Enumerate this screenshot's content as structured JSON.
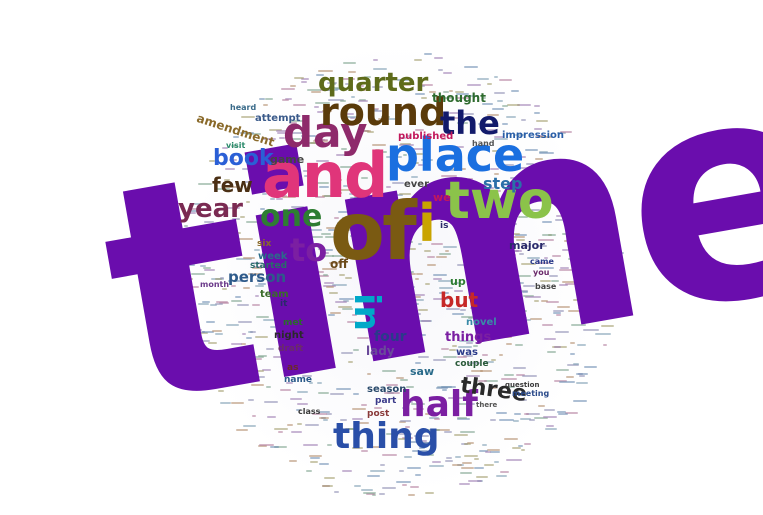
{
  "words": [
    {
      "text": "time",
      "color": "#6a0dad"
    },
    {
      "text": "and",
      "color": "#e0357a"
    },
    {
      "text": "of",
      "color": "#7a5a12"
    },
    {
      "text": "place",
      "color": "#1a6fe0"
    },
    {
      "text": "two",
      "color": "#8bc34a"
    },
    {
      "text": "day",
      "color": "#8e2a6b"
    },
    {
      "text": "round",
      "color": "#5a3a0a"
    },
    {
      "text": "quarter",
      "color": "#5e6b1a"
    },
    {
      "text": "the",
      "color": "#121a6b"
    },
    {
      "text": "i",
      "color": "#c9a400"
    },
    {
      "text": "one",
      "color": "#2e7d32"
    },
    {
      "text": "to",
      "color": "#7b1fa2"
    },
    {
      "text": "book",
      "color": "#2a5fd6"
    },
    {
      "text": "few",
      "color": "#4a2f14"
    },
    {
      "text": "year",
      "color": "#7a2a52"
    },
    {
      "text": "half",
      "color": "#7b1fa2"
    },
    {
      "text": "thing",
      "color": "#2a4fa8"
    },
    {
      "text": "in",
      "color": "#00a8c8"
    },
    {
      "text": "three",
      "color": "#2a2a2a"
    },
    {
      "text": "but",
      "color": "#c62828"
    },
    {
      "text": "step",
      "color": "#2a6fa8"
    },
    {
      "text": "person",
      "color": "#2e5a8a"
    },
    {
      "text": "amendment",
      "color": "#8a6a2a"
    },
    {
      "text": "game",
      "color": "#444444"
    },
    {
      "text": "thought",
      "color": "#2e6b2e"
    },
    {
      "text": "impression",
      "color": "#2a5fa8"
    },
    {
      "text": "published",
      "color": "#c2185b"
    },
    {
      "text": "attempt",
      "color": "#3a5a8a"
    },
    {
      "text": "four",
      "color": "#2a3a8a"
    },
    {
      "text": "things",
      "color": "#7b1fa2"
    },
    {
      "text": "lady",
      "color": "#6a4a9a"
    },
    {
      "text": "saw",
      "color": "#2a6b8a"
    },
    {
      "text": "up",
      "color": "#2e7d32"
    },
    {
      "text": "we",
      "color": "#c2185b"
    },
    {
      "text": "novel",
      "color": "#3a8aa8"
    },
    {
      "text": "was",
      "color": "#2a3a8a"
    },
    {
      "text": "couple",
      "color": "#2a5a3a"
    },
    {
      "text": "major",
      "color": "#2a2a6b"
    },
    {
      "text": "team",
      "color": "#3a6b2a"
    },
    {
      "text": "night",
      "color": "#2a2a2a"
    },
    {
      "text": "week",
      "color": "#2a6b8a"
    },
    {
      "text": "off",
      "color": "#6b4a1a"
    },
    {
      "text": "six",
      "color": "#8a6a2a"
    },
    {
      "text": "met",
      "color": "#2a6b2a"
    },
    {
      "text": "draft",
      "color": "#6b2a6b"
    },
    {
      "text": "season",
      "color": "#2a4a6b"
    },
    {
      "text": "post",
      "color": "#8a3a3a"
    },
    {
      "text": "part",
      "color": "#3a3a8a"
    },
    {
      "text": "name",
      "color": "#2a5a8a"
    },
    {
      "text": "ever",
      "color": "#444444"
    },
    {
      "text": "as",
      "color": "#6b2a2a"
    },
    {
      "text": "started",
      "color": "#2a6b6b"
    },
    {
      "text": "month",
      "color": "#6b3a8a"
    },
    {
      "text": "it",
      "color": "#2a2a6b"
    },
    {
      "text": "class",
      "color": "#3a3a3a"
    },
    {
      "text": "is",
      "color": "#2a2a6b"
    },
    {
      "text": "visit",
      "color": "#2a8a6b"
    },
    {
      "text": "heard",
      "color": "#3a6b8a"
    },
    {
      "text": "hand",
      "color": "#555555"
    },
    {
      "text": "came",
      "color": "#2a3a8a"
    },
    {
      "text": "you",
      "color": "#6b2a6b"
    },
    {
      "text": "base",
      "color": "#444444"
    },
    {
      "text": "meeting",
      "color": "#2a4a8a"
    },
    {
      "text": "question",
      "color": "#3a3a3a"
    },
    {
      "text": "there",
      "color": "#555555"
    }
  ]
}
